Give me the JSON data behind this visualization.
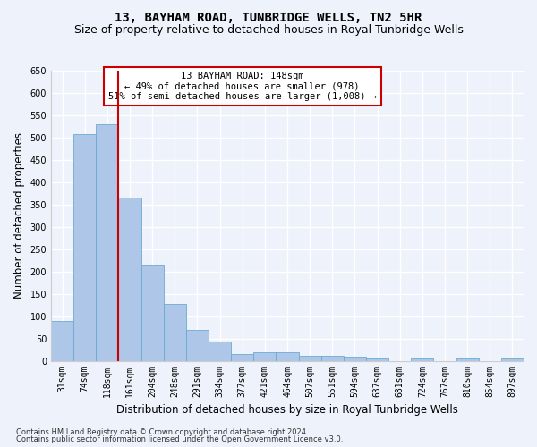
{
  "title": "13, BAYHAM ROAD, TUNBRIDGE WELLS, TN2 5HR",
  "subtitle": "Size of property relative to detached houses in Royal Tunbridge Wells",
  "xlabel": "Distribution of detached houses by size in Royal Tunbridge Wells",
  "ylabel": "Number of detached properties",
  "footnote1": "Contains HM Land Registry data © Crown copyright and database right 2024.",
  "footnote2": "Contains public sector information licensed under the Open Government Licence v3.0.",
  "categories": [
    "31sqm",
    "74sqm",
    "118sqm",
    "161sqm",
    "204sqm",
    "248sqm",
    "291sqm",
    "334sqm",
    "377sqm",
    "421sqm",
    "464sqm",
    "507sqm",
    "551sqm",
    "594sqm",
    "637sqm",
    "681sqm",
    "724sqm",
    "767sqm",
    "810sqm",
    "854sqm",
    "897sqm"
  ],
  "values": [
    90,
    507,
    530,
    365,
    215,
    127,
    70,
    43,
    15,
    19,
    19,
    12,
    12,
    9,
    5,
    0,
    6,
    0,
    5,
    0,
    5
  ],
  "bar_color": "#aec6e8",
  "bar_edge_color": "#6aaad4",
  "vline_x": 2.5,
  "vline_color": "#cc0000",
  "annotation_text": "13 BAYHAM ROAD: 148sqm\n← 49% of detached houses are smaller (978)\n51% of semi-detached houses are larger (1,008) →",
  "annotation_box_color": "#ffffff",
  "annotation_box_edge": "#cc0000",
  "ylim": [
    0,
    650
  ],
  "yticks": [
    0,
    50,
    100,
    150,
    200,
    250,
    300,
    350,
    400,
    450,
    500,
    550,
    600,
    650
  ],
  "background_color": "#eef2fb",
  "grid_color": "#ffffff",
  "title_fontsize": 10,
  "subtitle_fontsize": 9,
  "xlabel_fontsize": 8.5,
  "ylabel_fontsize": 8.5,
  "tick_fontsize": 7,
  "footnote_fontsize": 6
}
